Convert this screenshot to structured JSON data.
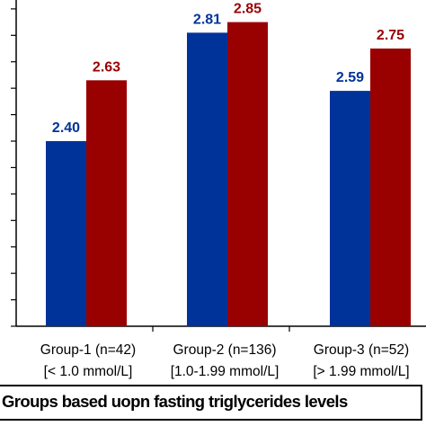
{
  "chart_data": {
    "type": "bar",
    "categories": [
      [
        "Group-1 (n=42)",
        "[< 1.0 mmol/L]"
      ],
      [
        "Group-2 (n=136)",
        "[1.0-1.99 mmol/L]"
      ],
      [
        "Group-3 (n=52)",
        "[> 1.99 mmol/L]"
      ]
    ],
    "series": [
      {
        "values": [
          2.4,
          2.81,
          2.59
        ],
        "color": "#003399"
      },
      {
        "values": [
          2.63,
          2.85,
          2.75
        ],
        "color": "#990000"
      }
    ],
    "value_labels": [
      [
        "2.40",
        "2.81",
        "2.59"
      ],
      [
        "2.63",
        "2.85",
        "2.75"
      ]
    ],
    "xlabel": "Groups based uopn fasting triglycerides levels",
    "ylim": [
      1.7,
      2.92
    ],
    "y_gridline_values": [
      1.7,
      1.8,
      1.9,
      2.0,
      2.1,
      2.2,
      2.3,
      2.4,
      2.5,
      2.6,
      2.7,
      2.8,
      2.9
    ],
    "grid": false,
    "legend": "none"
  }
}
